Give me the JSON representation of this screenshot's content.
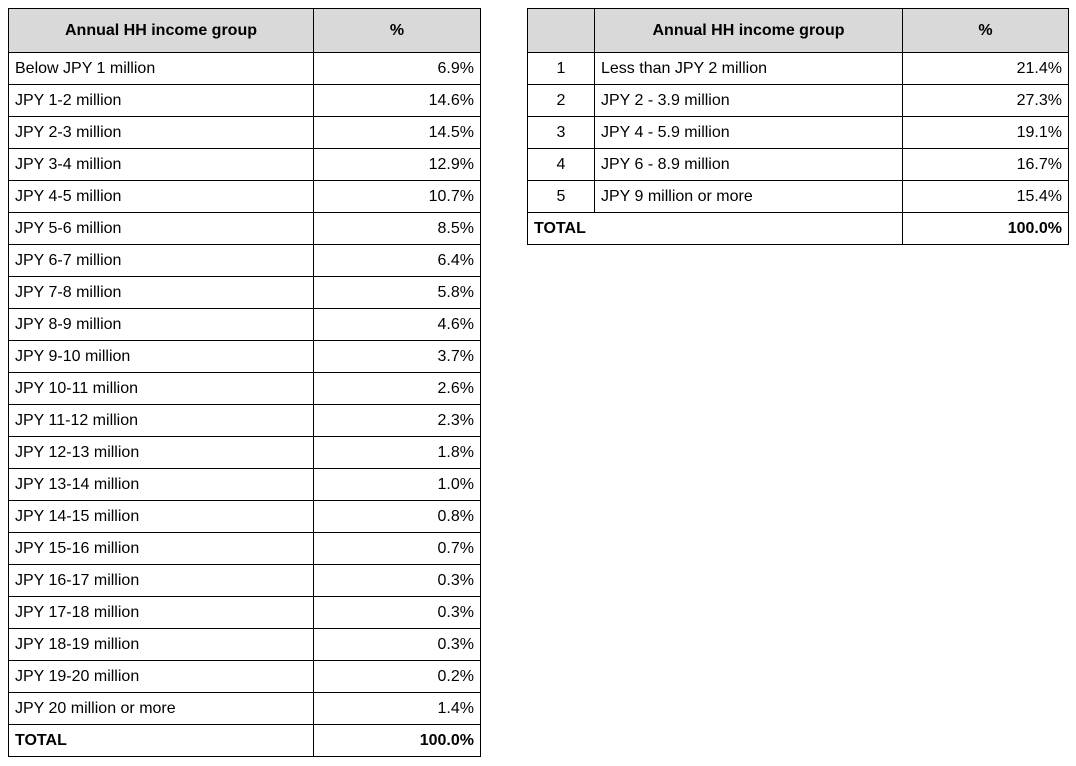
{
  "colors": {
    "header_fill": "#d9d9d9",
    "border": "#000000",
    "text": "#000000",
    "background": "#ffffff"
  },
  "left_table": {
    "headers": [
      "Annual HH income group",
      "%"
    ],
    "rows": [
      {
        "label": "Below JPY 1 million",
        "value": "6.9%"
      },
      {
        "label": "JPY 1-2 million",
        "value": "14.6%"
      },
      {
        "label": "JPY 2-3 million",
        "value": "14.5%"
      },
      {
        "label": "JPY 3-4 million",
        "value": "12.9%"
      },
      {
        "label": "JPY 4-5 million",
        "value": "10.7%"
      },
      {
        "label": "JPY 5-6 million",
        "value": "8.5%"
      },
      {
        "label": "JPY 6-7 million",
        "value": "6.4%"
      },
      {
        "label": "JPY 7-8 million",
        "value": "5.8%"
      },
      {
        "label": "JPY 8-9 million",
        "value": "4.6%"
      },
      {
        "label": "JPY 9-10 million",
        "value": "3.7%"
      },
      {
        "label": "JPY 10-11 million",
        "value": "2.6%"
      },
      {
        "label": "JPY 11-12 million",
        "value": "2.3%"
      },
      {
        "label": "JPY 12-13 million",
        "value": "1.8%"
      },
      {
        "label": "JPY 13-14 million",
        "value": "1.0%"
      },
      {
        "label": "JPY 14-15 million",
        "value": "0.8%"
      },
      {
        "label": "JPY 15-16 million",
        "value": "0.7%"
      },
      {
        "label": "JPY 16-17 million",
        "value": "0.3%"
      },
      {
        "label": "JPY 17-18 million",
        "value": "0.3%"
      },
      {
        "label": "JPY 18-19 million",
        "value": "0.3%"
      },
      {
        "label": "JPY 19-20 million",
        "value": "0.2%"
      },
      {
        "label": "JPY 20 million or more",
        "value": "1.4%"
      }
    ],
    "total": {
      "label": "TOTAL",
      "value": "100.0%"
    }
  },
  "right_table": {
    "headers": [
      "Annual HH income group",
      "%"
    ],
    "rows": [
      {
        "num": "1",
        "label": "Less than JPY 2 million",
        "value": "21.4%"
      },
      {
        "num": "2",
        "label": "JPY 2 - 3.9 million",
        "value": "27.3%"
      },
      {
        "num": "3",
        "label": "JPY 4 - 5.9 million",
        "value": "19.1%"
      },
      {
        "num": "4",
        "label": "JPY 6 - 8.9 million",
        "value": "16.7%"
      },
      {
        "num": "5",
        "label": "JPY 9 million or more",
        "value": "15.4%"
      }
    ],
    "total": {
      "label": "TOTAL",
      "value": "100.0%"
    }
  }
}
